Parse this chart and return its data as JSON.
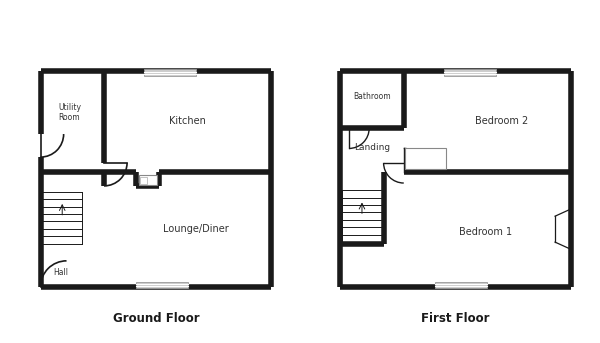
{
  "background_color": "#ffffff",
  "wall_color": "#1a1a1a",
  "wall_lw": 4.0,
  "thin_lw": 1.0,
  "ground_floor_label": "Ground Floor",
  "first_floor_label": "First Floor",
  "room_labels": {
    "kitchen": "Kitchen",
    "utility": "Utility\nRoom",
    "lounge": "Lounge/Diner",
    "hall": "Hall",
    "bathroom": "Bathroom",
    "landing": "Landing",
    "bedroom1": "Bedroom 1",
    "bedroom2": "Bedroom 2"
  }
}
